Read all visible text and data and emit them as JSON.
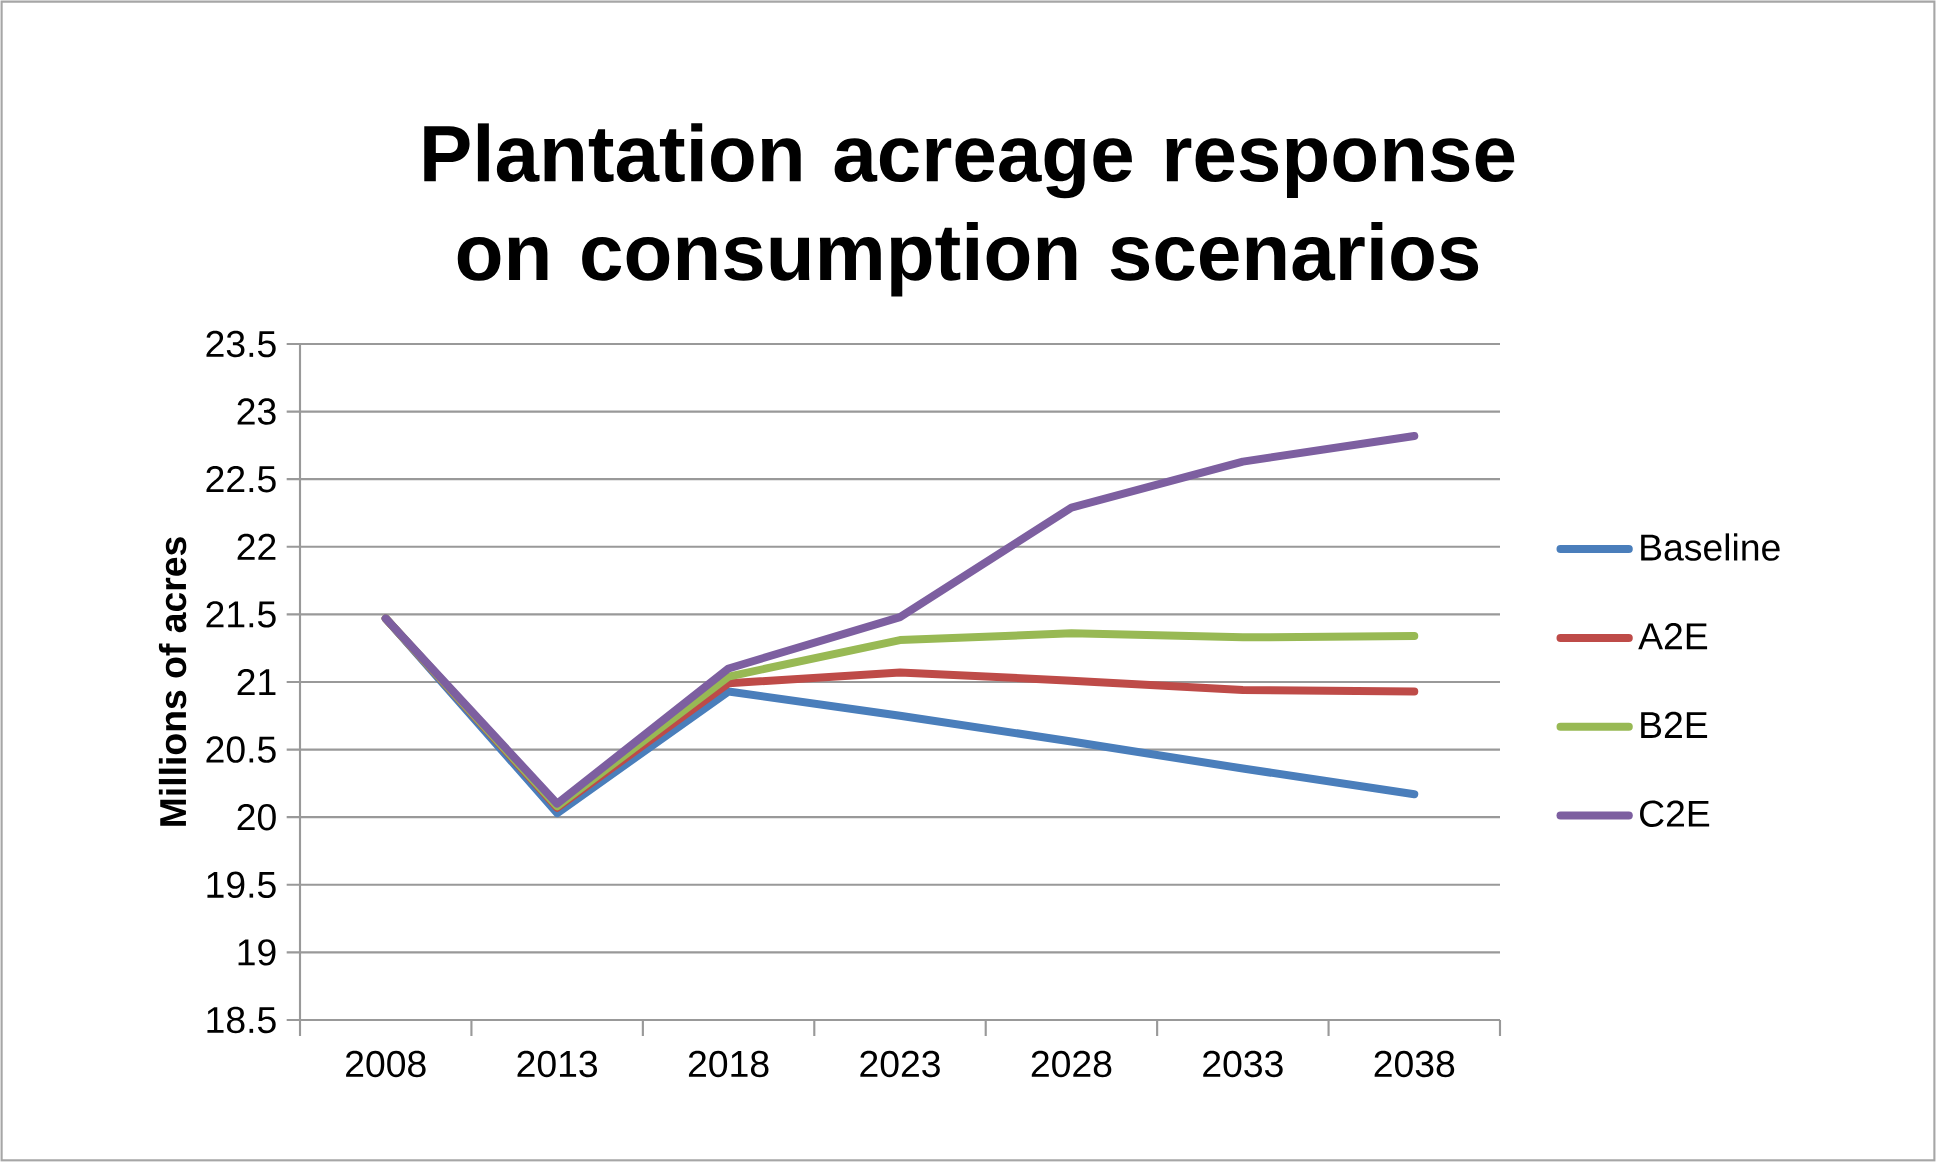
{
  "chart_data": {
    "type": "line",
    "title": "Plantation acreage response on consumption scenarios",
    "ylabel": "Millions of acres",
    "categories": [
      "2008",
      "2013",
      "2018",
      "2023",
      "2028",
      "2033",
      "2038"
    ],
    "series": [
      {
        "name": "Baseline",
        "color": "#4a7ebb",
        "values": [
          21.47,
          20.03,
          20.93,
          20.75,
          20.56,
          20.36,
          20.17
        ]
      },
      {
        "name": "A2E",
        "color": "#be4b48",
        "values": [
          21.47,
          20.07,
          20.99,
          21.07,
          21.01,
          20.94,
          20.93
        ]
      },
      {
        "name": "B2E",
        "color": "#98b954",
        "values": [
          21.47,
          20.08,
          21.04,
          21.31,
          21.36,
          21.33,
          21.34
        ]
      },
      {
        "name": "C2E",
        "color": "#7d5fa0",
        "values": [
          21.47,
          20.1,
          21.1,
          21.48,
          22.29,
          22.63,
          22.82
        ]
      }
    ],
    "ylim": [
      18.5,
      23.5
    ],
    "yticks": [
      18.5,
      19,
      19.5,
      20,
      20.5,
      21,
      21.5,
      22,
      22.5,
      23,
      23.5
    ],
    "grid": "y",
    "legend": "right",
    "marker": "none",
    "line_style": "solid"
  }
}
